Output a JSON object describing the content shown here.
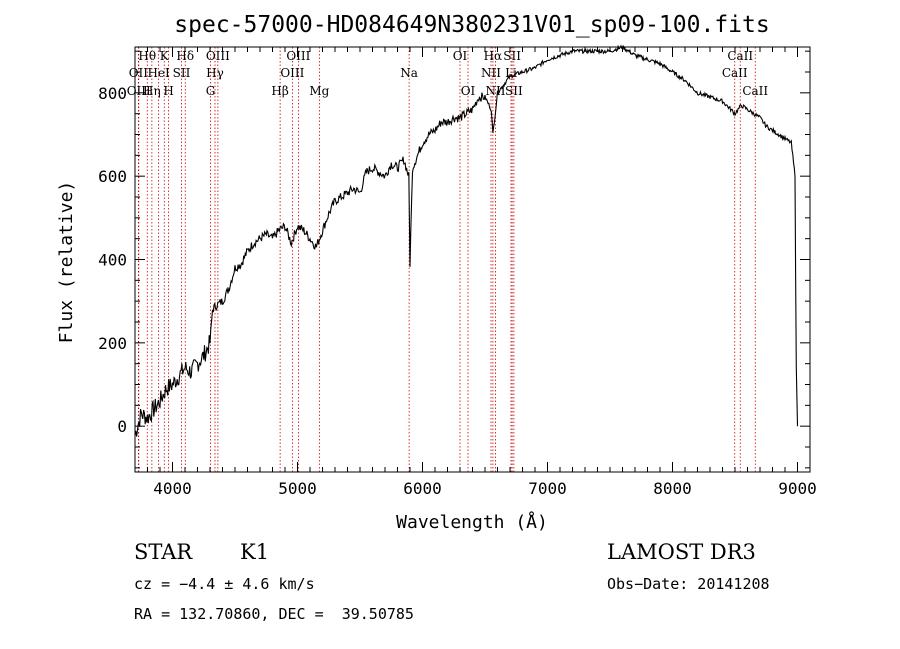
{
  "chart_data": {
    "type": "line",
    "title": "spec-57000-HD084649N380231V01_sp09-100.fits",
    "xlabel": "Wavelength (Å)",
    "ylabel": "Flux (relative)",
    "xlim": [
      3700,
      9100
    ],
    "ylim": [
      -110,
      910
    ],
    "x_ticks": [
      "4000",
      "5000",
      "6000",
      "7000",
      "8000",
      "9000"
    ],
    "y_ticks": [
      "0",
      "200",
      "400",
      "600",
      "800"
    ],
    "series": [
      {
        "x": [
          3700,
          3750,
          3800,
          3850,
          3900,
          3950,
          4000,
          4050,
          4100,
          4150,
          4200,
          4250,
          4300,
          4320,
          4350,
          4400,
          4450,
          4500,
          4550,
          4600,
          4650,
          4700,
          4750,
          4800,
          4850,
          4900,
          4950,
          5000,
          5050,
          5100,
          5150,
          5200,
          5250,
          5300,
          5350,
          5400,
          5450,
          5500,
          5550,
          5600,
          5650,
          5700,
          5750,
          5800,
          5850,
          5890,
          5900,
          5920,
          6000,
          6050,
          6100,
          6150,
          6200,
          6250,
          6300,
          6350,
          6400,
          6450,
          6500,
          6550,
          6563,
          6600,
          6700,
          6800,
          6900,
          7000,
          7100,
          7200,
          7300,
          7400,
          7500,
          7600,
          7700,
          7800,
          7900,
          8000,
          8100,
          8200,
          8300,
          8400,
          8500,
          8550,
          8600,
          8650,
          8700,
          8750,
          8800,
          8850,
          8900,
          8950,
          8980,
          8990,
          9000
        ],
        "y": [
          -20,
          30,
          20,
          40,
          60,
          90,
          100,
          120,
          140,
          130,
          150,
          170,
          200,
          280,
          290,
          300,
          330,
          380,
          390,
          420,
          440,
          450,
          460,
          450,
          470,
          480,
          440,
          480,
          470,
          450,
          430,
          470,
          510,
          540,
          550,
          560,
          570,
          560,
          610,
          620,
          610,
          600,
          630,
          620,
          640,
          600,
          390,
          620,
          680,
          700,
          710,
          730,
          730,
          740,
          740,
          750,
          760,
          790,
          790,
          760,
          700,
          800,
          840,
          850,
          860,
          880,
          890,
          900,
          900,
          900,
          900,
          910,
          890,
          880,
          870,
          850,
          830,
          800,
          790,
          780,
          750,
          770,
          760,
          750,
          740,
          720,
          710,
          700,
          690,
          680,
          600,
          140,
          0
        ]
      }
    ],
    "spectral_lines": [
      {
        "label": "Hθ",
        "x": 3798,
        "row": 1
      },
      {
        "label": "OII",
        "x": 3727,
        "row": 2
      },
      {
        "label": "OIII",
        "x": 3730,
        "row": 3
      },
      {
        "label": "K",
        "x": 3934,
        "row": 1
      },
      {
        "label": "HeI",
        "x": 3889,
        "row": 2
      },
      {
        "label": "Hη",
        "x": 3835,
        "row": 3
      },
      {
        "label": "Hδ",
        "x": 4102,
        "row": 1
      },
      {
        "label": "SII",
        "x": 4072,
        "row": 2
      },
      {
        "label": "H",
        "x": 3969,
        "row": 3
      },
      {
        "label": "OIII",
        "x": 4363,
        "row": 1
      },
      {
        "label": "Hγ",
        "x": 4340,
        "row": 2
      },
      {
        "label": "G",
        "x": 4304,
        "row": 3
      },
      {
        "label": "OIII",
        "x": 5007,
        "row": 1
      },
      {
        "label": "OIII",
        "x": 4959,
        "row": 2
      },
      {
        "label": "Hβ",
        "x": 4861,
        "row": 3
      },
      {
        "label": "Mg",
        "x": 5175,
        "row": 3
      },
      {
        "label": "Na",
        "x": 5893,
        "row": 2
      },
      {
        "label": "OI",
        "x": 6300,
        "row": 1
      },
      {
        "label": "OI",
        "x": 6364,
        "row": 3
      },
      {
        "label": "Hα",
        "x": 6563,
        "row": 1
      },
      {
        "label": "NII",
        "x": 6548,
        "row": 2
      },
      {
        "label": "NII",
        "x": 6584,
        "row": 3
      },
      {
        "label": "SII",
        "x": 6717,
        "row": 1
      },
      {
        "label": "Li",
        "x": 6708,
        "row": 2
      },
      {
        "label": "SII",
        "x": 6731,
        "row": 3
      },
      {
        "label": "CaII",
        "x": 8542,
        "row": 1
      },
      {
        "label": "CaII",
        "x": 8498,
        "row": 2
      },
      {
        "label": "CaII",
        "x": 8662,
        "row": 3
      }
    ],
    "line_color": "#000000",
    "marker_color": "#cc0000"
  },
  "info": {
    "object_class": "STAR",
    "subclass": "K1",
    "survey": "LAMOST DR3",
    "cz": "cz = −4.4 ± 4.6 km/s",
    "obs_date": "Obs−Date: 20141208",
    "coords": "RA = 132.70860, DEC =  39.50785"
  }
}
